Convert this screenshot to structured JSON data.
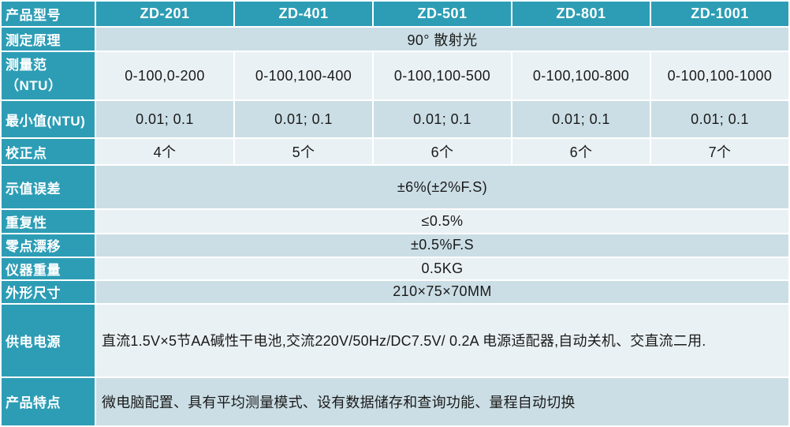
{
  "colors": {
    "teal": "#2D9DB5",
    "row_light": "#EAF1F4",
    "row_medium": "#CBDEE5",
    "gridline": "#FFFFFF",
    "header_text": "#FFFFFF",
    "body_text": "#1A1A1A"
  },
  "table": {
    "header": {
      "label": "产品型号",
      "models": [
        "ZD-201",
        "ZD-401",
        "ZD-501",
        "ZD-801",
        "ZD-1001"
      ]
    },
    "principle": {
      "label": "测定原理",
      "value": "90° 散射光"
    },
    "range": {
      "label": "测量范\n（NTU）",
      "values": [
        "0-100,0-200",
        "0-100,100-400",
        "0-100,100-500",
        "0-100,100-800",
        "0-100,100-1000"
      ]
    },
    "min_value": {
      "label": "最小值(NTU)",
      "values": [
        "0.01; 0.1",
        "0.01; 0.1",
        "0.01; 0.1",
        "0.01; 0.1",
        "0.01; 0.1"
      ]
    },
    "calibration": {
      "label": "校正点",
      "values": [
        "4个",
        "5个",
        "6个",
        "6个",
        "7个"
      ]
    },
    "error": {
      "label": "示值误差",
      "value": "±6%(±2%F.S)"
    },
    "repeatability": {
      "label": "重复性",
      "value": "≤0.5%"
    },
    "zero_drift": {
      "label": "零点漂移",
      "value": "±0.5%F.S"
    },
    "weight": {
      "label": "仪器重量",
      "value": "0.5KG"
    },
    "dimensions": {
      "label": "外形尺寸",
      "value": "210×75×70MM"
    },
    "power": {
      "label": "供电电源",
      "value": "直流1.5V×5节AA碱性干电池,交流220V/50Hz/DC7.5V/ 0.2A  电源适配器,自动关机、交直流二用."
    },
    "features": {
      "label": "产品特点",
      "value": "微电脑配置、具有平均测量模式、设有数据储存和查询功能、量程自动切换"
    }
  }
}
